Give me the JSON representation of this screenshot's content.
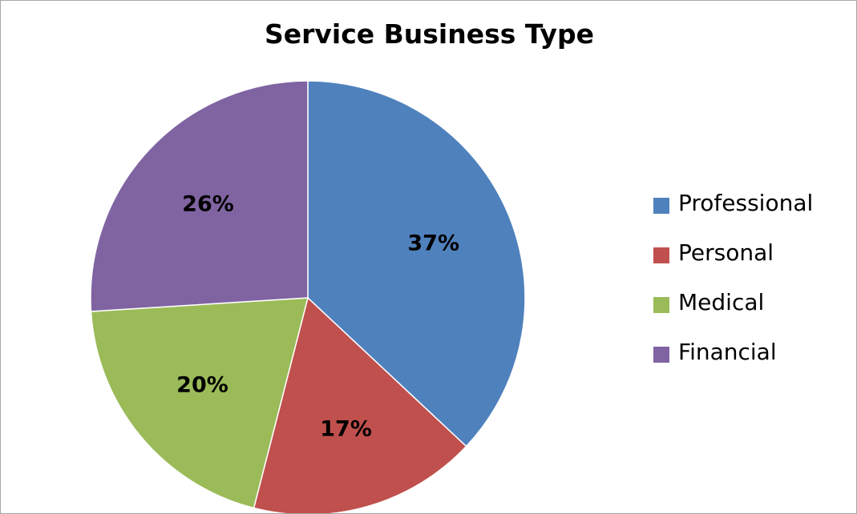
{
  "chart_data": {
    "type": "pie",
    "title": "Service Business Type",
    "categories": [
      "Professional",
      "Personal",
      "Medical",
      "Financial"
    ],
    "values": [
      37,
      17,
      20,
      26
    ],
    "labels": [
      "37%",
      "17%",
      "20%",
      "26%"
    ],
    "colors": [
      "#4f81bd",
      "#c0504d",
      "#9bbb59",
      "#8064a2"
    ],
    "start_angle_deg": 0,
    "direction": "clockwise",
    "legend_position": "right"
  }
}
